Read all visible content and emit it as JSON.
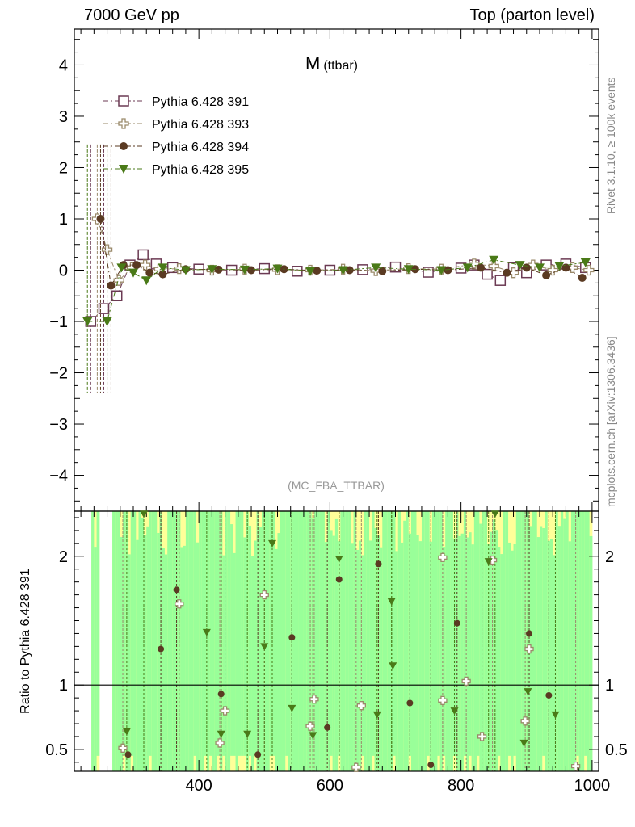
{
  "header": {
    "left": "7000 GeV pp",
    "right": "Top (parton level)"
  },
  "side_text": {
    "rivet": "Rivet 3.1.10, ≥ 100k events",
    "mcplots": "mcplots.cern.ch [arXiv:1306.3436]"
  },
  "chart_data": [
    {
      "type": "scatter",
      "panel": "main",
      "title": "M",
      "title_sub": "(ttbar)",
      "annotation": "(MC_FBA_TTBAR)",
      "xlim": [
        210,
        1010
      ],
      "ylim": [
        -4.7,
        4.7
      ],
      "yticks": [
        -4,
        -3,
        -2,
        -1,
        0,
        1,
        2,
        3,
        4
      ],
      "legend_position": "top-left",
      "series": [
        {
          "name": "Pythia 6.428 391",
          "color": "#6b3a53",
          "marker": "open-square",
          "x": [
            235,
            255,
            275,
            295,
            315,
            335,
            360,
            400,
            450,
            500,
            550,
            600,
            650,
            700,
            750,
            800,
            820,
            840,
            860,
            880,
            900,
            930,
            960,
            990
          ],
          "y": [
            -1.0,
            -0.75,
            -0.5,
            0.1,
            0.3,
            0.12,
            0.05,
            0.02,
            0.0,
            0.03,
            -0.02,
            0.0,
            0.01,
            0.06,
            -0.04,
            0.04,
            0.1,
            -0.08,
            -0.2,
            0.05,
            -0.05,
            0.1,
            0.12,
            0.05
          ]
        },
        {
          "name": "Pythia 6.428 393",
          "color": "#9a8a6a",
          "marker": "open-cross",
          "x": [
            245,
            260,
            278,
            298,
            318,
            340,
            370,
            420,
            470,
            520,
            570,
            620,
            670,
            720,
            770,
            820,
            850,
            880,
            910,
            940,
            970,
            995
          ],
          "y": [
            1.0,
            0.4,
            -0.2,
            0.05,
            0.1,
            0.02,
            0.03,
            0.0,
            0.02,
            0.01,
            0.0,
            0.02,
            -0.01,
            0.03,
            0.02,
            0.12,
            0.08,
            -0.05,
            0.1,
            0.0,
            0.05,
            0.0
          ]
        },
        {
          "name": "Pythia 6.428 394",
          "color": "#5a3a22",
          "marker": "filled-circle",
          "x": [
            250,
            266,
            285,
            305,
            325,
            345,
            380,
            430,
            480,
            530,
            580,
            630,
            680,
            730,
            780,
            830,
            870,
            900,
            930,
            960,
            985
          ],
          "y": [
            1.0,
            -0.3,
            0.1,
            0.1,
            -0.05,
            -0.08,
            0.02,
            0.01,
            0.0,
            0.02,
            -0.01,
            0.0,
            -0.02,
            0.02,
            0.0,
            0.05,
            -0.05,
            0.05,
            -0.1,
            0.05,
            -0.15
          ]
        },
        {
          "name": "Pythia 6.428 395",
          "color": "#4a7a18",
          "marker": "filled-triangle-down",
          "x": [
            230,
            260,
            282,
            300,
            320,
            345,
            380,
            420,
            470,
            520,
            570,
            620,
            670,
            720,
            770,
            810,
            850,
            890,
            920,
            950,
            990
          ],
          "y": [
            -1.0,
            -1.0,
            0.05,
            -0.05,
            -0.2,
            0.05,
            0.0,
            0.02,
            0.01,
            0.03,
            -0.02,
            0.0,
            0.05,
            0.02,
            0.0,
            0.05,
            0.2,
            0.1,
            0.05,
            0.08,
            0.15
          ]
        }
      ]
    },
    {
      "type": "scatter",
      "panel": "ratio",
      "ylabel": "Ratio to Pythia 6.428 391",
      "xlim": [
        210,
        1010
      ],
      "ylim": [
        0.33,
        2.35
      ],
      "yticks": [
        0.5,
        1,
        2
      ],
      "xticks": [
        400,
        600,
        800,
        1000
      ],
      "reference_line": 1,
      "band_colors": {
        "inner": "#99ff99",
        "outer": "#ffff99"
      },
      "series": [
        {
          "name": "Pythia 6.428 393",
          "color": "#9a8a6a",
          "marker": "open-cross",
          "x": [
            284,
            370,
            432,
            440,
            500,
            570,
            576,
            640,
            648,
            772,
            772,
            808,
            832,
            848,
            898,
            904,
            975
          ],
          "y": [
            0.51,
            1.63,
            0.55,
            0.8,
            1.7,
            0.68,
            0.89,
            0.36,
            0.84,
            1.99,
            0.88,
            1.03,
            0.6,
            1.97,
            0.72,
            1.28,
            0.37
          ]
        },
        {
          "name": "Pythia 6.428 394",
          "color": "#5a3a22",
          "marker": "filled-circle",
          "x": [
            292,
            342,
            366,
            434,
            490,
            542,
            596,
            614,
            674,
            722,
            754,
            794,
            904,
            934
          ],
          "y": [
            0.46,
            1.28,
            1.74,
            0.93,
            0.46,
            1.37,
            0.67,
            1.82,
            1.94,
            0.86,
            0.38,
            1.48,
            1.4,
            0.92
          ]
        },
        {
          "name": "Pythia 6.428 395",
          "color": "#4a7a18",
          "marker": "filled-triangle-down",
          "x": [
            290,
            316,
            412,
            434,
            474,
            500,
            512,
            542,
            574,
            614,
            672,
            694,
            696,
            790,
            842,
            852,
            896,
            902,
            944
          ],
          "y": [
            0.64,
            2.35,
            1.41,
            0.62,
            0.62,
            1.3,
            2.1,
            0.82,
            0.61,
            1.98,
            0.77,
            1.65,
            1.15,
            0.8,
            1.96,
            2.35,
            0.55,
            0.95,
            0.77
          ]
        }
      ]
    }
  ]
}
